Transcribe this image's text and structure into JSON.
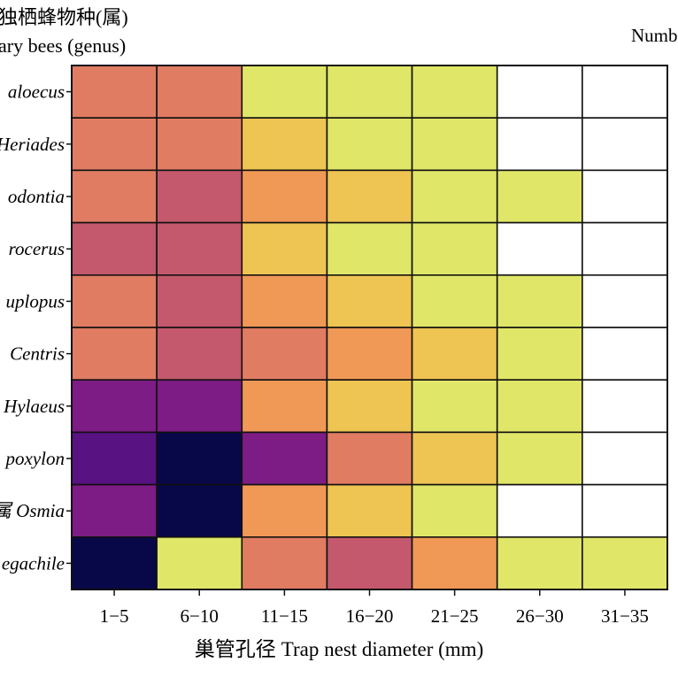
{
  "chart_data": {
    "type": "heatmap",
    "ylabel_lines": [
      "独栖蜂物种(属)",
      "ary bees (genus)"
    ],
    "xlabel_cn": "巢管孔径",
    "xlabel": "Trap nest diameter (mm)",
    "legend_title": "Numb",
    "x_categories": [
      "1−5",
      "6−10",
      "11−15",
      "16−20",
      "21−25",
      "26−30",
      "31−35"
    ],
    "y_categories": [
      "aloecus",
      "Heriades",
      "odontia",
      "rocerus",
      "uplopus",
      "Centris",
      "Hylaeus",
      "poxylon",
      "属 Osmia",
      "egachile"
    ],
    "color_scale": "plasma",
    "color_range": [
      0,
      10
    ],
    "values": [
      [
        7,
        7,
        9,
        9,
        9,
        null,
        null
      ],
      [
        7,
        7,
        8,
        9,
        9,
        null,
        null
      ],
      [
        7,
        6,
        7.5,
        8,
        9,
        9,
        null
      ],
      [
        6,
        6,
        8,
        9,
        9,
        null,
        null
      ],
      [
        7,
        6,
        7.5,
        8,
        9,
        9,
        null
      ],
      [
        7,
        6,
        7,
        7.5,
        8,
        9,
        null
      ],
      [
        3,
        3,
        7.5,
        8,
        9,
        9,
        null
      ],
      [
        2,
        0,
        3,
        7,
        8,
        9,
        null
      ],
      [
        3,
        0,
        7.5,
        8,
        9,
        null,
        null
      ],
      [
        0,
        9,
        7,
        6,
        7.5,
        9,
        9
      ]
    ],
    "grid": true
  }
}
